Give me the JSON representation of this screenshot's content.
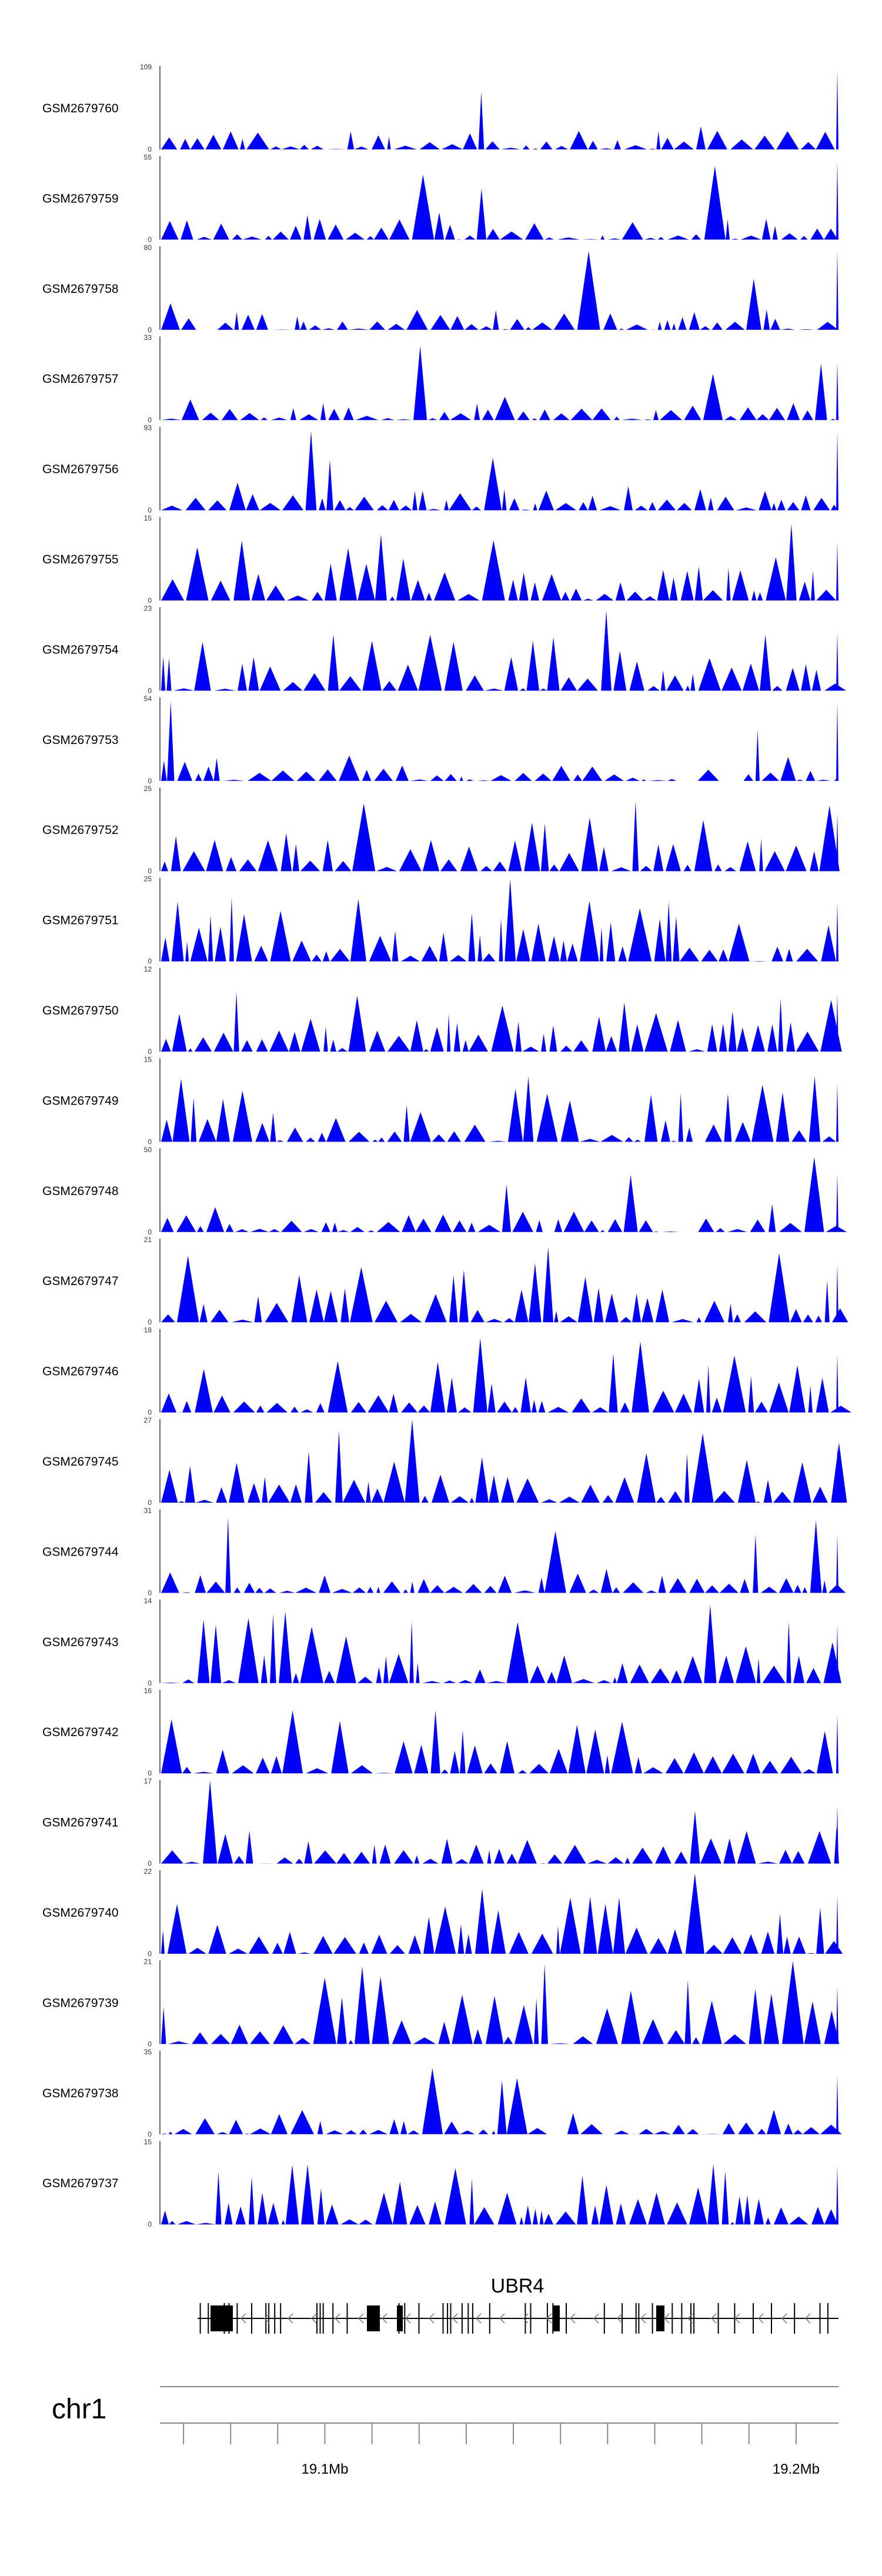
{
  "chart_data": {
    "type": "area",
    "title": "",
    "xlabel": "",
    "ylabel": "",
    "xlim_mb": [
      19.065,
      19.209
    ],
    "series": [
      {
        "name": "GSM2679760",
        "ymax": 109,
        "ymin": 0
      },
      {
        "name": "GSM2679759",
        "ymax": 55,
        "ymin": 0
      },
      {
        "name": "GSM2679758",
        "ymax": 80,
        "ymin": 0
      },
      {
        "name": "GSM2679757",
        "ymax": 33,
        "ymin": 0
      },
      {
        "name": "GSM2679756",
        "ymax": 93,
        "ymin": 0
      },
      {
        "name": "GSM2679755",
        "ymax": 15,
        "ymin": 0
      },
      {
        "name": "GSM2679754",
        "ymax": 23,
        "ymin": 0
      },
      {
        "name": "GSM2679753",
        "ymax": 54,
        "ymin": 0
      },
      {
        "name": "GSM2679752",
        "ymax": 25,
        "ymin": 0
      },
      {
        "name": "GSM2679751",
        "ymax": 25,
        "ymin": 0
      },
      {
        "name": "GSM2679750",
        "ymax": 12,
        "ymin": 0
      },
      {
        "name": "GSM2679749",
        "ymax": 15,
        "ymin": 0
      },
      {
        "name": "GSM2679748",
        "ymax": 50,
        "ymin": 0
      },
      {
        "name": "GSM2679747",
        "ymax": 21,
        "ymin": 0
      },
      {
        "name": "GSM2679746",
        "ymax": 18,
        "ymin": 0
      },
      {
        "name": "GSM2679745",
        "ymax": 27,
        "ymin": 0
      },
      {
        "name": "GSM2679744",
        "ymax": 31,
        "ymin": 0
      },
      {
        "name": "GSM2679743",
        "ymax": 14,
        "ymin": 0
      },
      {
        "name": "GSM2679742",
        "ymax": 16,
        "ymin": 0
      },
      {
        "name": "GSM2679741",
        "ymax": 17,
        "ymin": 0
      },
      {
        "name": "GSM2679740",
        "ymax": 22,
        "ymin": 0
      },
      {
        "name": "GSM2679739",
        "ymax": 21,
        "ymin": 0
      },
      {
        "name": "GSM2679738",
        "ymax": 35,
        "ymin": 0
      },
      {
        "name": "GSM2679737",
        "ymax": 15,
        "ymin": 0
      }
    ],
    "gene": {
      "name": "UBR4",
      "strand": "-"
    },
    "chromosome": "chr1",
    "ticks_mb": [
      19.07,
      19.08,
      19.09,
      19.1,
      19.11,
      19.12,
      19.13,
      19.14,
      19.15,
      19.16,
      19.17,
      19.18,
      19.19,
      19.2
    ],
    "tick_labels": [
      {
        "mb": 19.1,
        "label": "19.1Mb"
      },
      {
        "mb": 19.2,
        "label": "19.2Mb"
      }
    ]
  },
  "colors": {
    "signal": "#0000ff",
    "axis": "#666666",
    "gene": "#000000"
  }
}
